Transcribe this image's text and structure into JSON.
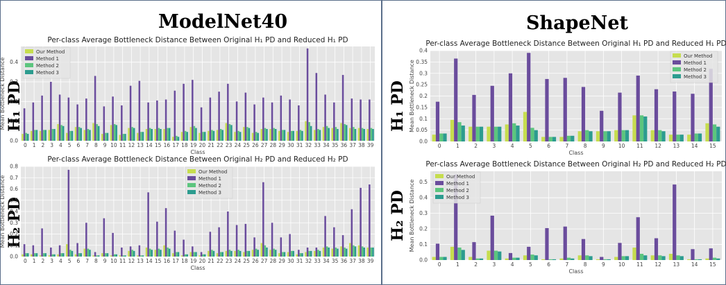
{
  "figure": {
    "left_title": "ModelNet40",
    "right_title": "ShapeNet",
    "row_label_h1": "H₁ PD",
    "row_label_h2": "H₂ PD"
  },
  "colors": {
    "Our Method": "#c6dd4e",
    "Method 1": "#6a4c9c",
    "Method 2": "#5cc57e",
    "Method 3": "#2c9c8f",
    "plot_bg": "#e5e5e5",
    "grid": "#ffffff"
  },
  "chart_data": [
    {
      "type": "bar",
      "title": "Per-class Average Bottleneck Distance Between Original H₁ PD and Reduced H₁ PD",
      "xlabel": "Class",
      "ylabel": "Mean Bottleneck Distance",
      "legend": "top-left",
      "grid": true,
      "ylim": [
        0,
        0.48
      ],
      "yticks": [
        0.0,
        0.1,
        0.2,
        0.3,
        0.4
      ],
      "categories": [
        "0",
        "1",
        "2",
        "3",
        "4",
        "5",
        "6",
        "7",
        "8",
        "9",
        "10",
        "11",
        "12",
        "13",
        "14",
        "15",
        "16",
        "17",
        "18",
        "19",
        "20",
        "21",
        "22",
        "23",
        "24",
        "25",
        "26",
        "27",
        "28",
        "29",
        "30",
        "31",
        "32",
        "33",
        "34",
        "35",
        "36",
        "37",
        "38",
        "39"
      ],
      "series": [
        {
          "name": "Our Method",
          "values": [
            0.035,
            0.05,
            0.05,
            0.055,
            0.085,
            0.04,
            0.07,
            0.055,
            0.09,
            0.035,
            0.08,
            0.03,
            0.065,
            0.04,
            0.06,
            0.06,
            0.06,
            0.02,
            0.045,
            0.07,
            0.04,
            0.05,
            0.055,
            0.09,
            0.045,
            0.07,
            0.04,
            0.06,
            0.06,
            0.05,
            0.045,
            0.05,
            0.1,
            0.055,
            0.07,
            0.065,
            0.09,
            0.065,
            0.065,
            0.06
          ]
        },
        {
          "name": "Method 1",
          "values": [
            0.165,
            0.195,
            0.23,
            0.3,
            0.235,
            0.22,
            0.185,
            0.215,
            0.33,
            0.175,
            0.225,
            0.18,
            0.28,
            0.305,
            0.195,
            0.205,
            0.21,
            0.255,
            0.29,
            0.31,
            0.17,
            0.22,
            0.25,
            0.29,
            0.2,
            0.245,
            0.185,
            0.22,
            0.195,
            0.23,
            0.21,
            0.18,
            0.47,
            0.345,
            0.235,
            0.195,
            0.335,
            0.215,
            0.21,
            0.21
          ]
        },
        {
          "name": "Method 2",
          "values": [
            0.04,
            0.055,
            0.055,
            0.06,
            0.08,
            0.05,
            0.07,
            0.06,
            0.085,
            0.04,
            0.085,
            0.035,
            0.07,
            0.045,
            0.065,
            0.065,
            0.065,
            0.025,
            0.05,
            0.075,
            0.045,
            0.055,
            0.06,
            0.085,
            0.05,
            0.07,
            0.045,
            0.065,
            0.065,
            0.055,
            0.05,
            0.055,
            0.095,
            0.06,
            0.075,
            0.07,
            0.085,
            0.07,
            0.065,
            0.065
          ]
        },
        {
          "name": "Method 3",
          "values": [
            0.035,
            0.055,
            0.055,
            0.06,
            0.075,
            0.05,
            0.065,
            0.055,
            0.075,
            0.04,
            0.08,
            0.035,
            0.065,
            0.045,
            0.06,
            0.06,
            0.065,
            0.02,
            0.045,
            0.065,
            0.045,
            0.05,
            0.055,
            0.08,
            0.045,
            0.065,
            0.04,
            0.06,
            0.06,
            0.055,
            0.05,
            0.05,
            0.075,
            0.055,
            0.065,
            0.06,
            0.08,
            0.06,
            0.06,
            0.06
          ]
        }
      ]
    },
    {
      "type": "bar",
      "title": "Per-class Average Bottleneck Distance Between Original H₂ PD and Reduced H₂ PD",
      "xlabel": "Class",
      "ylabel": "Mean Bottleneck Distance",
      "legend": "top-center",
      "grid": true,
      "ylim": [
        0,
        0.8
      ],
      "yticks": [
        0.0,
        0.1,
        0.2,
        0.3,
        0.4,
        0.5,
        0.6,
        0.7,
        0.8
      ],
      "categories": [
        "0",
        "1",
        "2",
        "3",
        "4",
        "5",
        "6",
        "7",
        "8",
        "9",
        "10",
        "11",
        "12",
        "13",
        "14",
        "15",
        "16",
        "17",
        "18",
        "19",
        "20",
        "21",
        "22",
        "23",
        "24",
        "25",
        "26",
        "27",
        "28",
        "29",
        "30",
        "31",
        "32",
        "33",
        "34",
        "35",
        "36",
        "37",
        "38",
        "39"
      ],
      "series": [
        {
          "name": "Our Method",
          "values": [
            0.02,
            0.02,
            0.01,
            0.01,
            0.02,
            0.11,
            0.02,
            0.07,
            0.01,
            0.03,
            0.01,
            0.01,
            0.05,
            0.01,
            0.08,
            0.06,
            0.1,
            0.03,
            0.01,
            0.04,
            0.01,
            0.05,
            0.03,
            0.05,
            0.05,
            0.04,
            0.06,
            0.12,
            0.06,
            0.03,
            0.04,
            0.02,
            0.04,
            0.05,
            0.08,
            0.07,
            0.09,
            0.12,
            0.1,
            0.08
          ]
        },
        {
          "name": "Method 1",
          "values": [
            0.11,
            0.1,
            0.25,
            0.08,
            0.1,
            0.77,
            0.12,
            0.3,
            0.04,
            0.34,
            0.21,
            0.08,
            0.09,
            0.1,
            0.57,
            0.31,
            0.43,
            0.23,
            0.15,
            0.09,
            0.04,
            0.22,
            0.26,
            0.4,
            0.28,
            0.29,
            0.17,
            0.66,
            0.3,
            0.17,
            0.2,
            0.06,
            0.08,
            0.08,
            0.36,
            0.26,
            0.19,
            0.42,
            0.61,
            0.64
          ]
        },
        {
          "name": "Method 2",
          "values": [
            0.03,
            0.03,
            0.03,
            0.02,
            0.03,
            0.06,
            0.03,
            0.07,
            0.01,
            0.03,
            0.02,
            0.01,
            0.06,
            0.01,
            0.07,
            0.07,
            0.08,
            0.04,
            0.02,
            0.04,
            0.02,
            0.06,
            0.04,
            0.06,
            0.06,
            0.05,
            0.07,
            0.1,
            0.07,
            0.04,
            0.05,
            0.03,
            0.05,
            0.06,
            0.09,
            0.08,
            0.08,
            0.1,
            0.09,
            0.08
          ]
        },
        {
          "name": "Method 3",
          "values": [
            0.03,
            0.03,
            0.03,
            0.02,
            0.03,
            0.05,
            0.03,
            0.06,
            0.01,
            0.03,
            0.02,
            0.01,
            0.05,
            0.01,
            0.06,
            0.06,
            0.07,
            0.04,
            0.02,
            0.04,
            0.02,
            0.05,
            0.04,
            0.05,
            0.05,
            0.05,
            0.06,
            0.08,
            0.06,
            0.04,
            0.05,
            0.03,
            0.05,
            0.05,
            0.08,
            0.07,
            0.07,
            0.09,
            0.08,
            0.08
          ]
        }
      ]
    },
    {
      "type": "bar",
      "title": "Per-class Average Bottleneck Distance Between Original H₁ PD and Reduced H₁ PD",
      "xlabel": "Class",
      "ylabel": "Mean Bottleneck Distance",
      "legend": "top-right",
      "grid": true,
      "ylim": [
        0,
        0.4
      ],
      "yticks": [
        0.0,
        0.05,
        0.1,
        0.15,
        0.2,
        0.25,
        0.3,
        0.35,
        0.4
      ],
      "categories": [
        "0",
        "1",
        "2",
        "3",
        "4",
        "5",
        "6",
        "7",
        "8",
        "9",
        "10",
        "11",
        "12",
        "13",
        "14",
        "15"
      ],
      "series": [
        {
          "name": "Our Method",
          "values": [
            0.03,
            0.095,
            0.065,
            0.065,
            0.075,
            0.13,
            0.02,
            0.02,
            0.045,
            0.045,
            0.05,
            0.115,
            0.05,
            0.03,
            0.03,
            0.08
          ]
        },
        {
          "name": "Method 1",
          "values": [
            0.175,
            0.365,
            0.205,
            0.245,
            0.3,
            0.39,
            0.275,
            0.28,
            0.24,
            0.135,
            0.215,
            0.29,
            0.23,
            0.22,
            0.21,
            0.32
          ]
        },
        {
          "name": "Method 2",
          "values": [
            0.035,
            0.085,
            0.065,
            0.065,
            0.08,
            0.06,
            0.02,
            0.025,
            0.05,
            0.045,
            0.05,
            0.115,
            0.05,
            0.03,
            0.035,
            0.075
          ]
        },
        {
          "name": "Method 3",
          "values": [
            0.035,
            0.07,
            0.065,
            0.065,
            0.07,
            0.05,
            0.02,
            0.025,
            0.045,
            0.045,
            0.05,
            0.11,
            0.045,
            0.03,
            0.035,
            0.065
          ]
        }
      ]
    },
    {
      "type": "bar",
      "title": "Per-class Average Bottleneck Distance Between Original H₂ PD and Reduced H₂ PD",
      "xlabel": "Class",
      "ylabel": "Mean Bottleneck Distance",
      "legend": "top-left",
      "grid": true,
      "ylim": [
        0,
        0.57
      ],
      "yticks": [
        0.0,
        0.1,
        0.2,
        0.3,
        0.4,
        0.5
      ],
      "categories": [
        "0",
        "1",
        "2",
        "3",
        "4",
        "5",
        "6",
        "7",
        "8",
        "9",
        "10",
        "11",
        "12",
        "13",
        "14",
        "15"
      ],
      "series": [
        {
          "name": "Our Method",
          "values": [
            0.02,
            0.085,
            0.02,
            0.06,
            0.01,
            0.03,
            0.005,
            0.01,
            0.03,
            0.005,
            0.02,
            0.08,
            0.03,
            0.04,
            0.005,
            0.01
          ]
        },
        {
          "name": "Method 1",
          "values": [
            0.105,
            0.55,
            0.115,
            0.285,
            0.045,
            0.085,
            0.205,
            0.215,
            0.135,
            0.02,
            0.11,
            0.275,
            0.14,
            0.485,
            0.07,
            0.075
          ]
        },
        {
          "name": "Method 2",
          "values": [
            0.02,
            0.08,
            0.01,
            0.06,
            0.015,
            0.035,
            0.005,
            0.015,
            0.03,
            0.005,
            0.025,
            0.04,
            0.03,
            0.03,
            0.005,
            0.015
          ]
        },
        {
          "name": "Method 3",
          "values": [
            0.02,
            0.065,
            0.01,
            0.055,
            0.015,
            0.03,
            0.005,
            0.01,
            0.025,
            0.005,
            0.025,
            0.03,
            0.025,
            0.025,
            0.005,
            0.01
          ]
        }
      ]
    }
  ]
}
